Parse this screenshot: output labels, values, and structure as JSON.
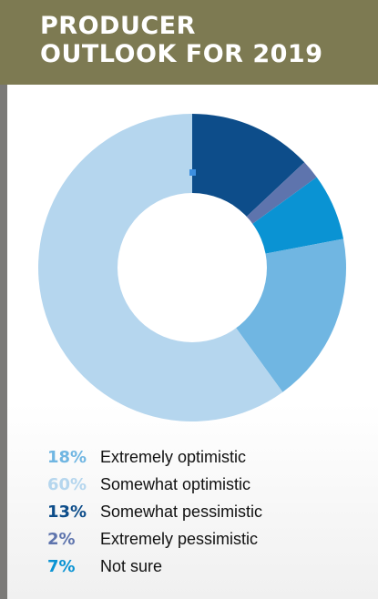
{
  "header": {
    "title_line1": "PRODUCER",
    "title_line2": "OUTLOOK FOR 2019"
  },
  "colors": {
    "header_bg": "#7d7a52",
    "hole": "#ffffff",
    "marker": "#3d8fe0"
  },
  "chart_data": {
    "type": "pie",
    "donut": true,
    "start": "top, clockwise",
    "slices_clockwise_from_top": [
      {
        "label": "Somewhat pessimistic",
        "pct_text": "13%",
        "value": 13,
        "color": "#0d4d8a"
      },
      {
        "label": "Extremely pessimistic",
        "pct_text": "2%",
        "value": 2,
        "color": "#5e74ad"
      },
      {
        "label": "Not sure",
        "pct_text": "7%",
        "value": 7,
        "color": "#0a93d3"
      },
      {
        "label": "Extremely optimistic",
        "pct_text": "18%",
        "value": 18,
        "color": "#70b6e2"
      },
      {
        "label": "Somewhat optimistic",
        "pct_text": "60%",
        "value": 60,
        "color": "#b5d6ee"
      }
    ],
    "legend": [
      {
        "pct": "18%",
        "label": "Extremely optimistic",
        "color": "#70b6e2"
      },
      {
        "pct": "60%",
        "label": "Somewhat optimistic",
        "color": "#b5d6ee"
      },
      {
        "pct": "13%",
        "label": "Somewhat pessimistic",
        "color": "#0d4d8a"
      },
      {
        "pct": "2%",
        "label": "Extremely pessimistic",
        "color": "#5e74ad"
      },
      {
        "pct": "7%",
        "label": "Not sure",
        "color": "#0a93d3"
      }
    ]
  }
}
